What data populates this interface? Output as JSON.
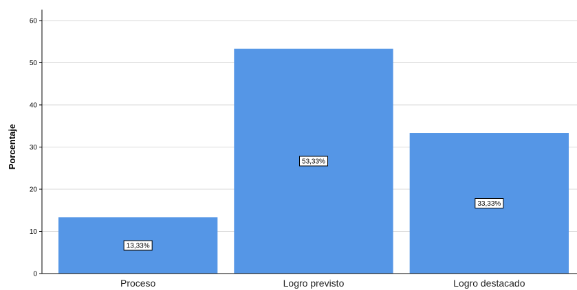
{
  "chart_data": {
    "type": "bar",
    "categories": [
      "Proceso",
      "Logro previsto",
      "Logro destacado"
    ],
    "values": [
      13.33,
      53.33,
      33.33
    ],
    "data_labels": [
      "13,33%",
      "53,33%",
      "33,33%"
    ],
    "title": "",
    "xlabel": "",
    "ylabel": "Porcentaje",
    "ylim": [
      0,
      60
    ],
    "yticks": [
      "0",
      "10",
      "20",
      "30",
      "40",
      "50",
      "60"
    ],
    "grid": true,
    "bar_color": "#5596E6",
    "grid_color": "#D9D9D9",
    "legend": "none"
  }
}
